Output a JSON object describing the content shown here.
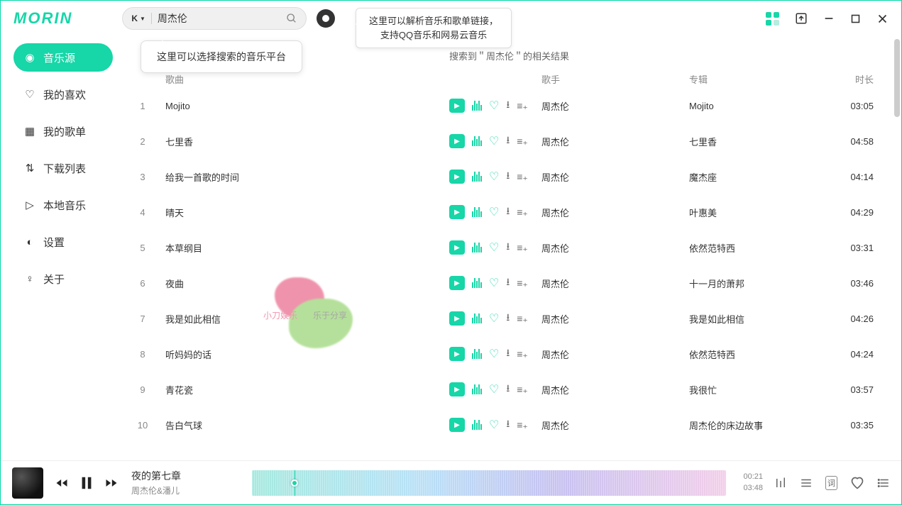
{
  "app": {
    "name": "MORIN"
  },
  "search": {
    "source_label": "K",
    "query": "周杰伦"
  },
  "tips": {
    "parse_line1": "这里可以解析音乐和歌单链接，",
    "parse_line2": "支持QQ音乐和网易云音乐",
    "platform": "这里可以选择搜索的音乐平台"
  },
  "sidebar": {
    "items": [
      {
        "label": "音乐源",
        "icon": "◉"
      },
      {
        "label": "我的喜欢",
        "icon": "♡"
      },
      {
        "label": "我的歌单",
        "icon": "▦"
      },
      {
        "label": "下载列表",
        "icon": "⇅"
      },
      {
        "label": "本地音乐",
        "icon": "▷"
      },
      {
        "label": "设置",
        "icon": "◐"
      },
      {
        "label": "关于",
        "icon": "♀"
      }
    ]
  },
  "results": {
    "title": "搜索到＂周杰伦＂的相关结果",
    "columns": {
      "song": "歌曲",
      "artist": "歌手",
      "album": "专辑",
      "duration": "时长"
    },
    "tracks": [
      {
        "idx": "1",
        "song": "Mojito",
        "artist": "周杰伦",
        "album": "Mojito",
        "duration": "03:05"
      },
      {
        "idx": "2",
        "song": "七里香",
        "artist": "周杰伦",
        "album": "七里香",
        "duration": "04:58"
      },
      {
        "idx": "3",
        "song": "给我一首歌的时间",
        "artist": "周杰伦",
        "album": "魔杰座",
        "duration": "04:14"
      },
      {
        "idx": "4",
        "song": "晴天",
        "artist": "周杰伦",
        "album": "叶惠美",
        "duration": "04:29"
      },
      {
        "idx": "5",
        "song": "本草纲目",
        "artist": "周杰伦",
        "album": "依然范特西",
        "duration": "03:31"
      },
      {
        "idx": "6",
        "song": "夜曲",
        "artist": "周杰伦",
        "album": "十一月的萧邦",
        "duration": "03:46"
      },
      {
        "idx": "7",
        "song": "我是如此相信",
        "artist": "周杰伦",
        "album": "我是如此相信",
        "duration": "04:26"
      },
      {
        "idx": "8",
        "song": "听妈妈的话",
        "artist": "周杰伦",
        "album": "依然范特西",
        "duration": "04:24"
      },
      {
        "idx": "9",
        "song": "青花瓷",
        "artist": "周杰伦",
        "album": "我很忙",
        "duration": "03:57"
      },
      {
        "idx": "10",
        "song": "告白气球",
        "artist": "周杰伦",
        "album": "周杰伦的床边故事",
        "duration": "03:35"
      }
    ]
  },
  "player": {
    "title": "夜的第七章",
    "artist": "周杰伦&潘儿",
    "elapsed": "00:21",
    "total": "03:48",
    "progress_pct": 9
  },
  "watermark": {
    "left": "小刀娱乐",
    "right": "乐于分享"
  },
  "colors": {
    "accent": "#17d6a8"
  }
}
